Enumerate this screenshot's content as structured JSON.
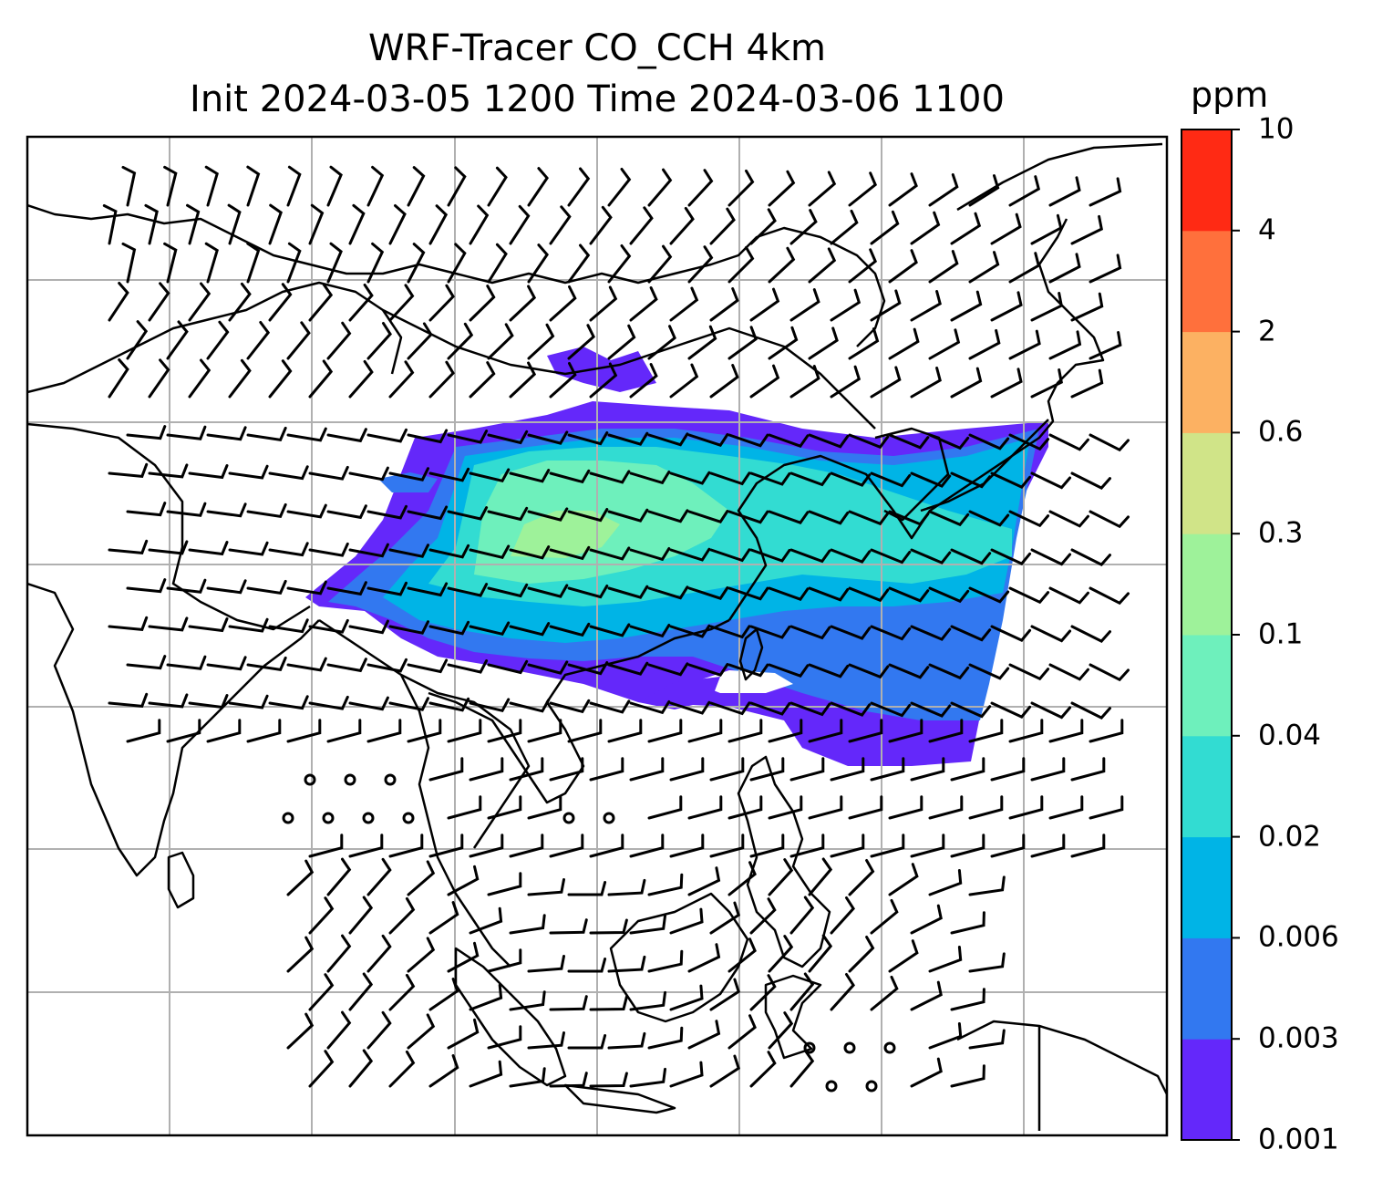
{
  "title_line1": "WRF-Tracer CO_CCH 4km",
  "title_line2": "Init 2024-03-05 1200 Time 2024-03-06 1100",
  "colorbar": {
    "unit": "ppm",
    "levels": [
      "0.001",
      "0.003",
      "0.006",
      "0.02",
      "0.04",
      "0.1",
      "0.3",
      "0.6",
      "2",
      "4",
      "10"
    ],
    "colors": [
      "#6428fa",
      "#3278f0",
      "#00b4e6",
      "#32dcd2",
      "#6ef0bc",
      "#9ef29a",
      "#d0e488",
      "#fcb162",
      "#ff703c",
      "#ff2a14"
    ]
  },
  "map": {
    "gridlines": true,
    "coastline_color": "#000000",
    "gridline_color": "#b0b0b0"
  }
}
